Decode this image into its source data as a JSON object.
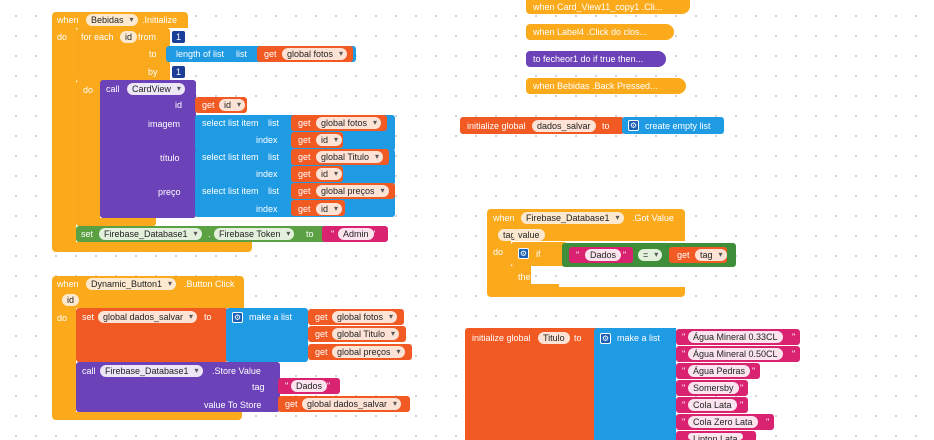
{
  "blocks": {
    "initialize_event": {
      "when": "when",
      "component": "Bebidas",
      "event": ".Initialize",
      "do": "do",
      "for_each": "for each",
      "loop_var": "id",
      "from_label": "from",
      "from_val": "1",
      "to_label": "to",
      "length_label": "length of list",
      "list_label": "list",
      "get1": "get",
      "get1_var": "global fotos",
      "by_label": "by",
      "by_val": "1",
      "do2": "do",
      "call": "call",
      "cardview": "CardView",
      "id_label": "id",
      "get_id": "get",
      "get_id_var": "id",
      "imagem_label": "imagem",
      "select1": "select list item",
      "select1_list": "list",
      "select1_get": "get",
      "select1_var": "global fotos",
      "index1": "index",
      "index1_get": "get",
      "index1_var": "id",
      "titulo_label": "título",
      "select2": "select list item",
      "select2_list": "list",
      "select2_get": "get",
      "select2_var": "global Titulo",
      "index2": "index",
      "index2_get": "get",
      "index2_var": "id",
      "preco_label": "preço",
      "select3": "select list item",
      "select3_list": "list",
      "select3_get": "get",
      "select3_var": "global preços",
      "index3": "index",
      "index3_get": "get",
      "index3_var": "id",
      "set": "set",
      "set_component": "Firebase_Database1",
      "set_prop": "Firebase Token",
      "set_to": "to",
      "set_value": "Admin"
    },
    "button_event": {
      "when": "when",
      "component": "Dynamic_Button1",
      "event": ".Button Click",
      "param": "id",
      "do": "do",
      "set": "set",
      "set_var": "global dados_salvar",
      "set_to": "to",
      "make_list": "make a list",
      "get1": "get",
      "get1_var": "global fotos",
      "get2": "get",
      "get2_var": "global Titulo",
      "get3": "get",
      "get3_var": "global preços",
      "call": "call",
      "call_component": "Firebase_Database1",
      "call_method": ".Store Value",
      "tag_label": "tag",
      "tag_value": "Dados",
      "vts_label": "value To Store",
      "vts_get": "get",
      "vts_var": "global dados_salvar"
    },
    "collapsed": [
      {
        "text": "when  Card_View11_copy1 .Cli..."
      },
      {
        "text": "when  Label4 .Click do clos..."
      },
      {
        "text": "to fecheor1 do if true then..."
      },
      {
        "text": "when  Bebidas .Back Pressed..."
      }
    ],
    "init_dados": {
      "label": "initialize global",
      "name": "dados_salvar",
      "to": "to",
      "create": "create empty list"
    },
    "got_value": {
      "when": "when",
      "component": "Firebase_Database1",
      "event": ".Got Value",
      "param1": "tag",
      "param2": "value",
      "do": "do",
      "if": "if",
      "then": "then",
      "text_val": "Dados",
      "eq": "=",
      "get": "get",
      "get_var": "tag"
    },
    "init_titulo": {
      "label": "initialize global",
      "name": "Titulo",
      "to": "to",
      "make_list": "make a list",
      "items": [
        "Água Mineral 0.33CL",
        "Água Mineral 0.50CL",
        "Água Pedras",
        "Somersby",
        "Cola Lata",
        "Cola Zero Lata",
        "Lipton Lata"
      ]
    }
  },
  "colors": {
    "event": "#fbaa1c",
    "procedure": "#6c42b8",
    "list": "#1f9be4",
    "variable": "#f25a24",
    "text": "#d92370",
    "logic": "#5ba043"
  }
}
